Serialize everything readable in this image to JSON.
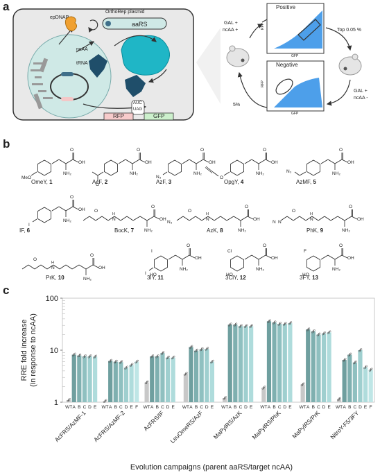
{
  "panel_labels": {
    "a": "a",
    "b": "b",
    "c": "c"
  },
  "panel_a": {
    "epdnap": "epDNAP",
    "plasmid": "OrthoRep plasmid",
    "aars": "aaRS",
    "ncaa": "ncAA",
    "trna": "tRNA",
    "anticodon": "AUC",
    "codon": "UAG",
    "rfp": "RFP",
    "gfp": "GFP",
    "gal_plus": "GAL +",
    "ncaa_plus": "ncAA +",
    "gal_plus_2": "GAL +",
    "ncaa_minus": "ncAA -",
    "positive": "Positive",
    "negative": "Negative",
    "top": "Top 0.05 %",
    "five": "5%",
    "axis_rfp": "RFP",
    "axis_gfp": "GFP"
  },
  "panel_b": {
    "compounds": [
      {
        "name": "OmeY, ",
        "num": "1"
      },
      {
        "name": "AcF, ",
        "num": "2"
      },
      {
        "name": "AzF, ",
        "num": "3"
      },
      {
        "name": "OpgY, ",
        "num": "4"
      },
      {
        "name": "AzMF, ",
        "num": "5"
      },
      {
        "name": "IF, ",
        "num": "6"
      },
      {
        "name": "BocK, ",
        "num": "7"
      },
      {
        "name": "AzK, ",
        "num": "8"
      },
      {
        "name": "PhK, ",
        "num": "9"
      },
      {
        "name": "PrK, ",
        "num": "10"
      },
      {
        "name": "3IY, ",
        "num": "11"
      },
      {
        "name": "3ClY, ",
        "num": "12"
      },
      {
        "name": "3FY, ",
        "num": "13"
      }
    ],
    "atoms": {
      "meo": "MeO",
      "oh": "OH",
      "nh2": "NH₂",
      "o": "O",
      "n3": "N₃",
      "i": "I",
      "cl": "Cl",
      "f": "F",
      "ho": "HO",
      "h": "H",
      "n": "N"
    }
  },
  "chart_data": {
    "type": "bar",
    "ylabel": "RRE fold increase\n(in response to ncAA)",
    "xlabel": "Evolution campaigns (parent aaRS/target ncAA)",
    "yscale": "log",
    "ylim": [
      1,
      100
    ],
    "yticks": [
      "1",
      "10",
      "100"
    ],
    "bar_labels": [
      "WT",
      "A",
      "B",
      "C",
      "D",
      "E",
      "F"
    ],
    "colors": {
      "WT": "#c8c8c8",
      "A": "#6f9f9f",
      "B": "#7fb0b0",
      "C": "#8fc0c0",
      "D": "#9fcfcf",
      "E": "#afdcdc",
      "F": "#bfe6e6"
    },
    "groups": [
      {
        "name": "AcFRS/AzMF-1",
        "values": [
          1.1,
          8.2,
          7.9,
          7.6,
          7.6,
          7.5,
          null
        ]
      },
      {
        "name": "AcFRS/AzMF-2",
        "values": [
          1.05,
          6.2,
          6.0,
          5.9,
          4.6,
          5.2,
          6.0
        ]
      },
      {
        "name": "AcFRS/IF",
        "values": [
          2.4,
          7.6,
          7.6,
          8.8,
          7.2,
          7.2,
          null
        ]
      },
      {
        "name": "LeuOmeRS/AzF",
        "values": [
          3.5,
          11.5,
          9.8,
          10.4,
          10.6,
          6.0,
          null
        ]
      },
      {
        "name": "MaPylRS/AzK",
        "values": [
          1.2,
          31,
          31,
          29,
          29,
          29,
          null
        ]
      },
      {
        "name": "MaPylRS/PhK",
        "values": [
          1.9,
          36,
          34,
          32,
          32,
          33,
          null
        ]
      },
      {
        "name": "MaPylRS/PrK",
        "values": [
          2.2,
          25,
          23,
          20,
          21,
          22,
          null
        ]
      },
      {
        "name": "NitroY-F5/3FY",
        "values": [
          1.15,
          6.5,
          8.2,
          5.8,
          10.0,
          4.7,
          4.2
        ]
      }
    ]
  }
}
